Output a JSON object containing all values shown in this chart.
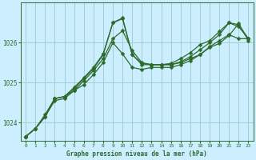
{
  "background_color": "#cceeff",
  "plot_bg_color": "#cceeff",
  "grid_color": "#99cccc",
  "line_color": "#2d6b2d",
  "marker_color": "#2d6b2d",
  "title": "Graphe pression niveau de la mer (hPa)",
  "xlim": [
    -0.5,
    23.5
  ],
  "ylim": [
    1023.55,
    1027.0
  ],
  "yticks": [
    1024,
    1025,
    1026
  ],
  "xticks": [
    0,
    1,
    2,
    3,
    4,
    5,
    6,
    7,
    8,
    9,
    10,
    11,
    12,
    13,
    14,
    15,
    16,
    17,
    18,
    19,
    20,
    21,
    22,
    23
  ],
  "series": [
    [
      1023.65,
      1023.85,
      1024.15,
      1024.6,
      1024.65,
      1024.8,
      1025.05,
      1025.3,
      1025.6,
      1026.1,
      1026.3,
      1025.8,
      1025.5,
      1025.45,
      1025.45,
      1025.45,
      1025.5,
      1025.6,
      1025.7,
      1025.9,
      1026.05,
      1026.2,
      1026.1,
      1026.1
    ],
    [
      1023.65,
      1023.85,
      1024.15,
      1024.6,
      1024.65,
      1024.85,
      1025.1,
      1025.35,
      1025.7,
      1026.5,
      1026.6,
      1025.7,
      1025.48,
      1025.45,
      1025.45,
      1025.45,
      1025.52,
      1025.65,
      1025.82,
      1026.0,
      1026.2,
      1026.5,
      1026.45,
      1026.1
    ],
    [
      1023.65,
      1023.85,
      1024.15,
      1024.55,
      1024.6,
      1024.8,
      1024.95,
      1025.2,
      1025.5,
      1026.0,
      1025.72,
      1025.38,
      1025.33,
      1025.38,
      1025.38,
      1025.38,
      1025.45,
      1025.55,
      1025.7,
      1025.88,
      1025.98,
      1026.18,
      1026.48,
      1026.05
    ],
    [
      1023.65,
      1023.85,
      1024.2,
      1024.6,
      1024.65,
      1024.88,
      1025.12,
      1025.38,
      1025.72,
      1026.5,
      1026.62,
      1025.7,
      1025.45,
      1025.45,
      1025.45,
      1025.48,
      1025.6,
      1025.75,
      1025.95,
      1026.05,
      1026.28,
      1026.5,
      1026.4,
      1026.1
    ]
  ],
  "marker_size": 2.5,
  "linewidth": 0.9
}
